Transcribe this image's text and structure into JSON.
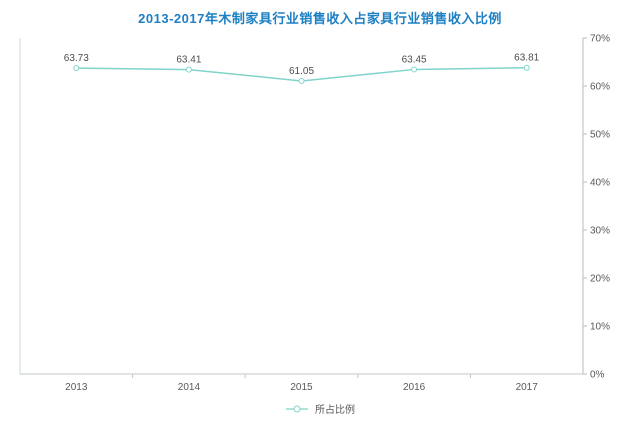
{
  "title": "2013-2017年木制家具行业销售收入占家具行业销售收入比例",
  "colors": {
    "title": "#1d7fc4",
    "line": "#7fd4cb",
    "marker_fill": "#ffffff",
    "axis_left": "#ccd9d6",
    "axis_right": "#b5bcbc",
    "axis_x": "#c2c8c8",
    "tick_label": "#595959",
    "data_label": "#4d4d4d",
    "legend_label": "#595959"
  },
  "legend": {
    "label": "所占比例"
  },
  "chart_data": {
    "type": "line",
    "title": "2013-2017年木制家具行业销售收入占家具行业销售收入比例",
    "categories": [
      "2013",
      "2014",
      "2015",
      "2016",
      "2017"
    ],
    "series": [
      {
        "name": "所占比例",
        "values": [
          63.73,
          63.41,
          61.05,
          63.45,
          63.81
        ]
      }
    ],
    "data_labels": [
      "63.73",
      "63.41",
      "61.05",
      "63.45",
      "63.81"
    ],
    "xlabel": "",
    "ylabel": "",
    "y_axis": {
      "side": "right",
      "min": 0,
      "max": 70,
      "step": 10,
      "format": "percent"
    },
    "y_tick_labels": [
      "0%",
      "10%",
      "20%",
      "30%",
      "40%",
      "50%",
      "60%",
      "70%"
    ],
    "grid": false,
    "legend_position": "bottom"
  }
}
